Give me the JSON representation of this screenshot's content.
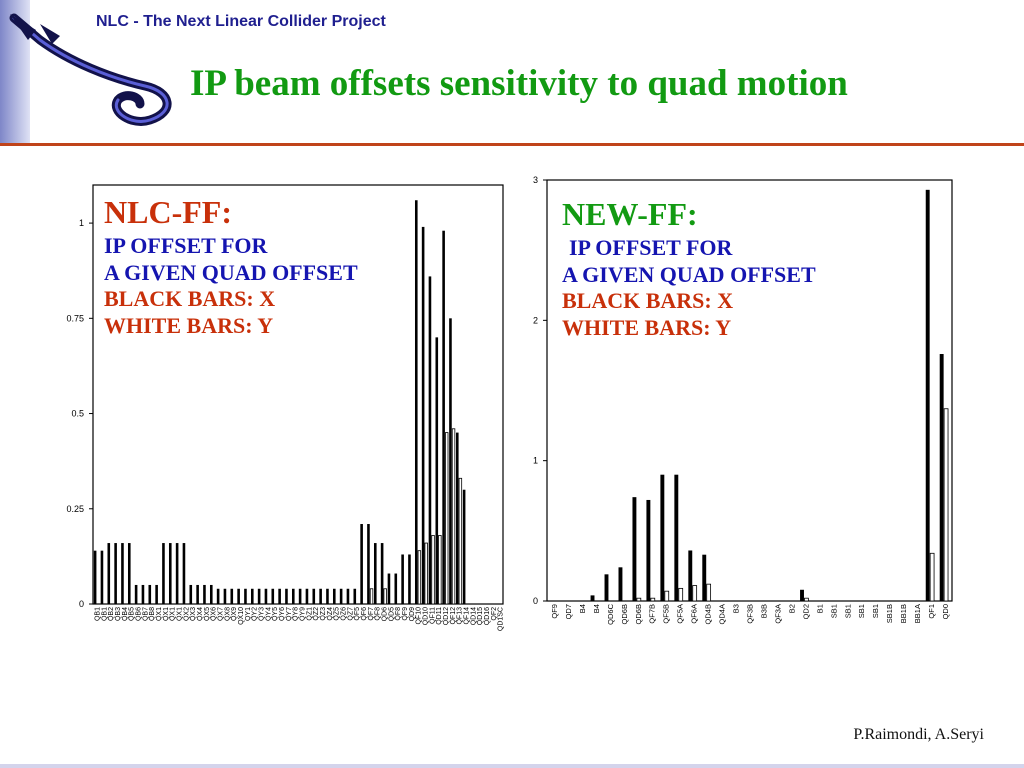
{
  "header": {
    "title": "NLC - The Next Linear Collider Project"
  },
  "slide_title": "IP beam offsets sensitivity to quad motion",
  "credits": "P.Raimondi, A.Seryi",
  "colors": {
    "title_green": "#129a12",
    "header_blue": "#1f1f8f",
    "rule_orange": "#c0441a",
    "annotation_blue": "#1515b0",
    "annotation_red": "#c8300a"
  },
  "logo": {
    "icon": "nlc-logo-icon"
  },
  "chart1_annotation": {
    "heading": "NLC-FF:",
    "line1": "IP OFFSET FOR",
    "line2": "A GIVEN QUAD OFFSET",
    "line3": "BLACK BARS: X",
    "line4": "WHITE BARS: Y"
  },
  "chart2_annotation": {
    "heading": "NEW-FF:",
    "line1": "IP OFFSET FOR",
    "line2": "A GIVEN QUAD OFFSET",
    "line3": "BLACK BARS: X",
    "line4": "WHITE BARS: Y"
  },
  "chart_data": [
    {
      "type": "bar",
      "categories": [
        "QB1",
        "QB1",
        "QB2",
        "QB3",
        "QB4",
        "QB5",
        "QB6",
        "QB7",
        "QB8",
        "QX1",
        "QX1",
        "QX1",
        "QX1",
        "QX2",
        "QX3",
        "QX4",
        "QX5",
        "QX6",
        "QX7",
        "QX8",
        "QX9",
        "QX10",
        "QY1",
        "QY2",
        "QY3",
        "QY4",
        "QY5",
        "QY6",
        "QY7",
        "QY8",
        "QY9",
        "QZ1",
        "QZ2",
        "QZ3",
        "QZ4",
        "QZ5",
        "QZ6",
        "QZ7",
        "QF5",
        "QF6",
        "QF7",
        "QF8",
        "QD6",
        "QD5",
        "QF8",
        "QF9",
        "QD9",
        "QF10",
        "QD10",
        "QF11",
        "QD11",
        "QD12",
        "QF12",
        "QF13",
        "QF14",
        "QD14",
        "QD15",
        "QD16",
        "QF2",
        "QD1SC"
      ],
      "series": [
        {
          "values": [
            0.14,
            0.14,
            0.16,
            0.16,
            0.16,
            0.16,
            0.05,
            0.05,
            0.05,
            0.05,
            0.16,
            0.16,
            0.16,
            0.16,
            0.05,
            0.05,
            0.05,
            0.05,
            0.04,
            0.04,
            0.04,
            0.04,
            0.04,
            0.04,
            0.04,
            0.04,
            0.04,
            0.04,
            0.04,
            0.04,
            0.04,
            0.04,
            0.04,
            0.04,
            0.04,
            0.04,
            0.04,
            0.04,
            0.04,
            0.21,
            0.21,
            0.16,
            0.16,
            0.08,
            0.08,
            0.13,
            0.13,
            1.06,
            0.99,
            0.86,
            0.7,
            0.98,
            0.75,
            0.45,
            0.3,
            0.0,
            0.0,
            0.0,
            0.0,
            0.0
          ]
        },
        {
          "values": [
            0.0,
            0.0,
            0.0,
            0.0,
            0.0,
            0.0,
            0.0,
            0.0,
            0.0,
            0.0,
            0.0,
            0.0,
            0.0,
            0.0,
            0.0,
            0.0,
            0.0,
            0.0,
            0.0,
            0.0,
            0.0,
            0.0,
            0.0,
            0.0,
            0.0,
            0.0,
            0.0,
            0.0,
            0.0,
            0.0,
            0.0,
            0.0,
            0.0,
            0.0,
            0.0,
            0.0,
            0.0,
            0.0,
            0.0,
            0.0,
            0.04,
            0.0,
            0.04,
            0.0,
            0.0,
            0.0,
            0.0,
            0.14,
            0.16,
            0.18,
            0.18,
            0.45,
            0.46,
            0.33,
            0.0,
            0.0,
            0.0,
            0.0,
            0.0,
            0.0
          ]
        }
      ],
      "yticks": [
        "0",
        "0.25",
        "0.5",
        "0.75",
        "1"
      ],
      "ylim": [
        0,
        1.1
      ]
    },
    {
      "type": "bar",
      "categories": [
        "QF9",
        "QD7",
        "B4",
        "B4",
        "QD6C",
        "QD6B",
        "QD6B",
        "QF7B",
        "QF5B",
        "QF5A",
        "QF6A",
        "QD4B",
        "QD4A",
        "B3",
        "QF3B",
        "B3B",
        "QF3A",
        "B2",
        "QD2",
        "B1",
        "SB1",
        "SB1",
        "SB1",
        "SB1",
        "SB1B",
        "BB1B",
        "BB1A",
        "QF1",
        "QD0"
      ],
      "series": [
        {
          "values": [
            0.0,
            0.0,
            0.0,
            0.04,
            0.19,
            0.24,
            0.74,
            0.72,
            0.9,
            0.9,
            0.36,
            0.33,
            0.0,
            0.0,
            0.0,
            0.0,
            0.0,
            0.0,
            0.08,
            0.0,
            0.0,
            0.0,
            0.0,
            0.0,
            0.0,
            0.0,
            0.0,
            2.93,
            1.76
          ]
        },
        {
          "values": [
            0.0,
            0.0,
            0.0,
            0.0,
            0.0,
            0.0,
            0.02,
            0.02,
            0.07,
            0.09,
            0.11,
            0.12,
            0.0,
            0.0,
            0.0,
            0.0,
            0.0,
            0.0,
            0.02,
            0.0,
            0.0,
            0.0,
            0.0,
            0.0,
            0.0,
            0.0,
            0.0,
            0.34,
            1.37
          ]
        }
      ],
      "yticks": [
        "0",
        "1",
        "2",
        "3"
      ],
      "ylim": [
        0,
        3.0
      ]
    }
  ]
}
